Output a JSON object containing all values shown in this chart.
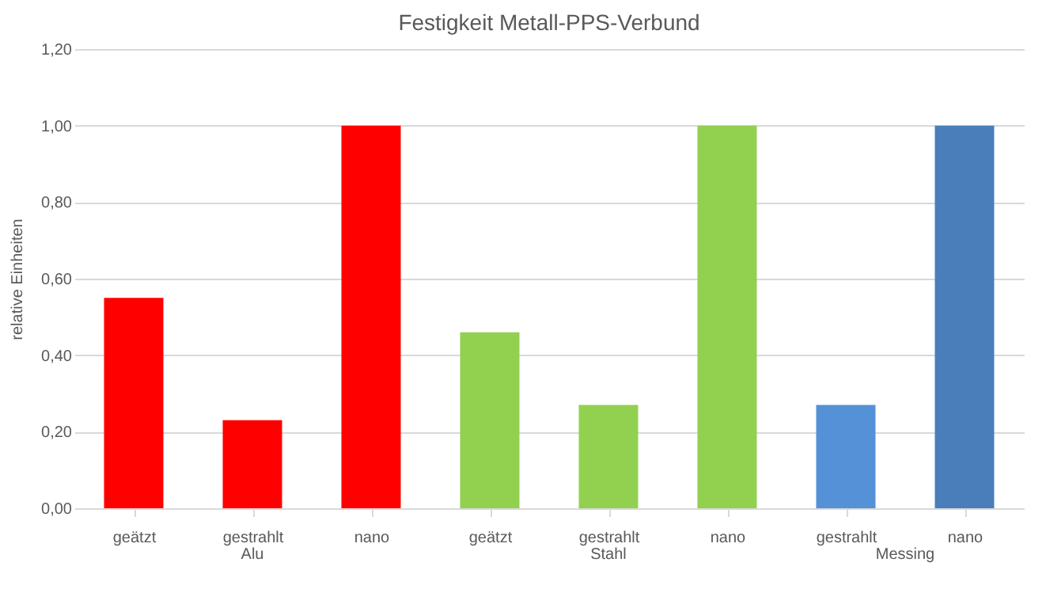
{
  "chart_data": {
    "type": "bar",
    "title": "Festigkeit Metall-PPS-Verbund",
    "ylabel": "relative Einheiten",
    "categories": [
      "geätzt",
      "gestrahlt",
      "nano",
      "geätzt",
      "gestrahlt",
      "nano",
      "gestrahlt",
      "nano"
    ],
    "series": [
      {
        "name": "Alu",
        "color": "#ff0000",
        "values": [
          0.55,
          0.23,
          1.0,
          null,
          null,
          null,
          null,
          null
        ]
      },
      {
        "name": "Stahl",
        "color": "#92d050",
        "values": [
          null,
          null,
          null,
          0.46,
          0.27,
          1.0,
          null,
          null
        ]
      },
      {
        "name": "Messing",
        "colors": [
          null,
          null,
          null,
          null,
          null,
          null,
          "#5591d6",
          "#4a7ebb"
        ],
        "values": [
          null,
          null,
          null,
          null,
          null,
          null,
          0.27,
          1.0
        ]
      }
    ],
    "ylim": [
      0,
      1.2
    ],
    "yticks": [
      {
        "value": 0,
        "label": "0,00"
      },
      {
        "value": 0.2,
        "label": "0,20"
      },
      {
        "value": 0.4,
        "label": "0,40"
      },
      {
        "value": 0.6,
        "label": "0,60"
      },
      {
        "value": 0.8,
        "label": "0,80"
      },
      {
        "value": 1.0,
        "label": "1,00"
      },
      {
        "value": 1.2,
        "label": "1,20"
      }
    ],
    "grid": "y",
    "legend": false
  }
}
